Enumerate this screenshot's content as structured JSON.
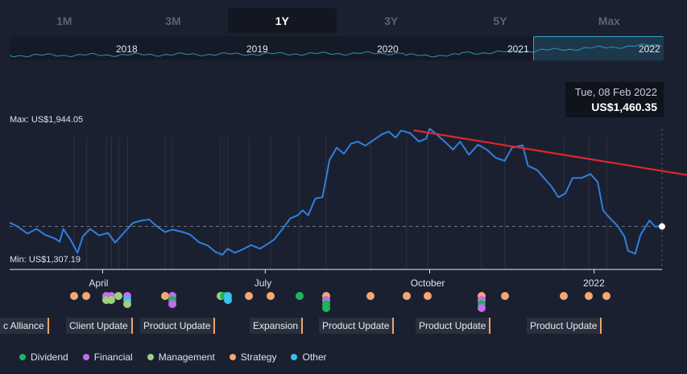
{
  "tabs": [
    {
      "label": "1M",
      "active": false
    },
    {
      "label": "3M",
      "active": false
    },
    {
      "label": "1Y",
      "active": true
    },
    {
      "label": "3Y",
      "active": false
    },
    {
      "label": "5Y",
      "active": false
    },
    {
      "label": "Max",
      "active": false
    }
  ],
  "navigator": {
    "years": [
      "2018",
      "2019",
      "2020",
      "2021",
      "2022"
    ],
    "colors": {
      "line": "#2a92b8",
      "window": "#39a3c9"
    }
  },
  "tooltip": {
    "date": "Tue, 08 Feb 2022",
    "price": "US$1,460.35"
  },
  "max_label": "Max: US$1,944.05",
  "min_label": "Min: US$1,307.19",
  "chart_data": {
    "type": "line",
    "title": "",
    "xlabel": "",
    "ylabel": "",
    "x_tick_labels": [
      "April",
      "July",
      "October",
      "2022"
    ],
    "ylim": [
      1300,
      1960
    ],
    "series": [
      {
        "color": "#2f7fe0",
        "points": [
          [
            "2021-02-08",
            1480
          ],
          [
            "2021-02-12",
            1462
          ],
          [
            "2021-02-18",
            1425
          ],
          [
            "2021-02-23",
            1448
          ],
          [
            "2021-02-28",
            1418
          ],
          [
            "2021-03-05",
            1402
          ],
          [
            "2021-03-08",
            1385
          ],
          [
            "2021-03-10",
            1448
          ],
          [
            "2021-03-14",
            1395
          ],
          [
            "2021-03-18",
            1330
          ],
          [
            "2021-03-21",
            1412
          ],
          [
            "2021-03-25",
            1448
          ],
          [
            "2021-03-30",
            1416
          ],
          [
            "2021-04-04",
            1428
          ],
          [
            "2021-04-08",
            1380
          ],
          [
            "2021-04-13",
            1430
          ],
          [
            "2021-04-18",
            1478
          ],
          [
            "2021-04-22",
            1488
          ],
          [
            "2021-04-27",
            1495
          ],
          [
            "2021-05-02",
            1456
          ],
          [
            "2021-05-06",
            1432
          ],
          [
            "2021-05-10",
            1445
          ],
          [
            "2021-05-16",
            1432
          ],
          [
            "2021-05-20",
            1420
          ],
          [
            "2021-05-25",
            1382
          ],
          [
            "2021-05-30",
            1365
          ],
          [
            "2021-06-03",
            1335
          ],
          [
            "2021-06-07",
            1320
          ],
          [
            "2021-06-10",
            1350
          ],
          [
            "2021-06-14",
            1330
          ],
          [
            "2021-06-18",
            1345
          ],
          [
            "2021-06-23",
            1368
          ],
          [
            "2021-06-28",
            1350
          ],
          [
            "2021-07-02",
            1372
          ],
          [
            "2021-07-06",
            1395
          ],
          [
            "2021-07-11",
            1452
          ],
          [
            "2021-07-15",
            1500
          ],
          [
            "2021-07-19",
            1515
          ],
          [
            "2021-07-22",
            1540
          ],
          [
            "2021-07-25",
            1515
          ],
          [
            "2021-07-29",
            1598
          ],
          [
            "2021-08-02",
            1605
          ],
          [
            "2021-08-06",
            1790
          ],
          [
            "2021-08-10",
            1850
          ],
          [
            "2021-08-14",
            1820
          ],
          [
            "2021-08-18",
            1870
          ],
          [
            "2021-08-22",
            1880
          ],
          [
            "2021-08-26",
            1860
          ],
          [
            "2021-08-31",
            1890
          ],
          [
            "2021-09-04",
            1915
          ],
          [
            "2021-09-08",
            1930
          ],
          [
            "2021-09-12",
            1900
          ],
          [
            "2021-09-15",
            1935
          ],
          [
            "2021-09-20",
            1922
          ],
          [
            "2021-09-25",
            1880
          ],
          [
            "2021-09-29",
            1895
          ],
          [
            "2021-10-01",
            1944
          ],
          [
            "2021-10-05",
            1915
          ],
          [
            "2021-10-10",
            1875
          ],
          [
            "2021-10-14",
            1840
          ],
          [
            "2021-10-18",
            1880
          ],
          [
            "2021-10-23",
            1815
          ],
          [
            "2021-10-28",
            1865
          ],
          [
            "2021-11-02",
            1840
          ],
          [
            "2021-11-07",
            1800
          ],
          [
            "2021-11-12",
            1785
          ],
          [
            "2021-11-16",
            1850
          ],
          [
            "2021-11-22",
            1862
          ],
          [
            "2021-11-25",
            1760
          ],
          [
            "2021-11-30",
            1740
          ],
          [
            "2021-12-04",
            1700
          ],
          [
            "2021-12-08",
            1660
          ],
          [
            "2021-12-12",
            1605
          ],
          [
            "2021-12-16",
            1625
          ],
          [
            "2021-12-20",
            1700
          ],
          [
            "2021-12-25",
            1700
          ],
          [
            "2021-12-30",
            1720
          ],
          [
            "2022-01-03",
            1680
          ],
          [
            "2022-01-06",
            1540
          ],
          [
            "2022-01-10",
            1500
          ],
          [
            "2022-01-14",
            1465
          ],
          [
            "2022-01-18",
            1410
          ],
          [
            "2022-01-20",
            1340
          ],
          [
            "2022-01-24",
            1325
          ],
          [
            "2022-01-27",
            1420
          ],
          [
            "2022-02-01",
            1490
          ],
          [
            "2022-02-04",
            1460
          ],
          [
            "2022-02-08",
            1460.35
          ]
        ]
      }
    ],
    "trendline": {
      "color": "#e0262d",
      "from": [
        "2021-09-22",
        1936
      ],
      "to": [
        "2022-02-08",
        1735
      ]
    },
    "reference_line": 1460.35,
    "events": [
      {
        "date": "2021-03-16",
        "type": "Strategy"
      },
      {
        "date": "2021-03-23",
        "type": "Strategy"
      },
      {
        "date": "2021-04-03",
        "type": "Financial"
      },
      {
        "date": "2021-04-03",
        "type": "Management"
      },
      {
        "date": "2021-04-06",
        "type": "Financial"
      },
      {
        "date": "2021-04-06",
        "type": "Management"
      },
      {
        "date": "2021-04-10",
        "type": "Management"
      },
      {
        "date": "2021-04-15",
        "type": "Financial"
      },
      {
        "date": "2021-04-15",
        "type": "Other"
      },
      {
        "date": "2021-04-15",
        "type": "Management"
      },
      {
        "date": "2021-05-06",
        "type": "Strategy"
      },
      {
        "date": "2021-05-10",
        "type": "Financial"
      },
      {
        "date": "2021-05-10",
        "type": "Dividend"
      },
      {
        "date": "2021-05-10",
        "type": "Financial"
      },
      {
        "date": "2021-06-06",
        "type": "Management"
      },
      {
        "date": "2021-06-08",
        "type": "Dividend"
      },
      {
        "date": "2021-06-10",
        "type": "Other"
      },
      {
        "date": "2021-06-10",
        "type": "Other"
      },
      {
        "date": "2021-06-22",
        "type": "Strategy"
      },
      {
        "date": "2021-07-04",
        "type": "Strategy"
      },
      {
        "date": "2021-07-20",
        "type": "Dividend"
      },
      {
        "date": "2021-08-04",
        "type": "Strategy"
      },
      {
        "date": "2021-08-04",
        "type": "Financial"
      },
      {
        "date": "2021-08-04",
        "type": "Dividend"
      },
      {
        "date": "2021-08-04",
        "type": "Dividend"
      },
      {
        "date": "2021-08-29",
        "type": "Strategy"
      },
      {
        "date": "2021-09-18",
        "type": "Strategy"
      },
      {
        "date": "2021-09-30",
        "type": "Strategy"
      },
      {
        "date": "2021-10-30",
        "type": "Strategy"
      },
      {
        "date": "2021-10-30",
        "type": "Financial"
      },
      {
        "date": "2021-10-30",
        "type": "Dividend"
      },
      {
        "date": "2021-10-30",
        "type": "Financial"
      },
      {
        "date": "2021-11-12",
        "type": "Strategy"
      },
      {
        "date": "2021-12-15",
        "type": "Strategy"
      },
      {
        "date": "2021-12-29",
        "type": "Strategy"
      },
      {
        "date": "2022-01-08",
        "type": "Strategy"
      }
    ],
    "event_labels": [
      {
        "text": "c Alliance"
      },
      {
        "text": "Client Update"
      },
      {
        "text": "Product Update"
      },
      {
        "text": "Expansion"
      },
      {
        "text": "Product Update"
      },
      {
        "text": "Product Update"
      },
      {
        "text": "Product Update"
      }
    ],
    "legend": [
      {
        "name": "Dividend",
        "color": "#20b35c"
      },
      {
        "name": "Financial",
        "color": "#c46cf0"
      },
      {
        "name": "Management",
        "color": "#9ed07f"
      },
      {
        "name": "Strategy",
        "color": "#f5a86e"
      },
      {
        "name": "Other",
        "color": "#3ac2f0"
      }
    ]
  }
}
